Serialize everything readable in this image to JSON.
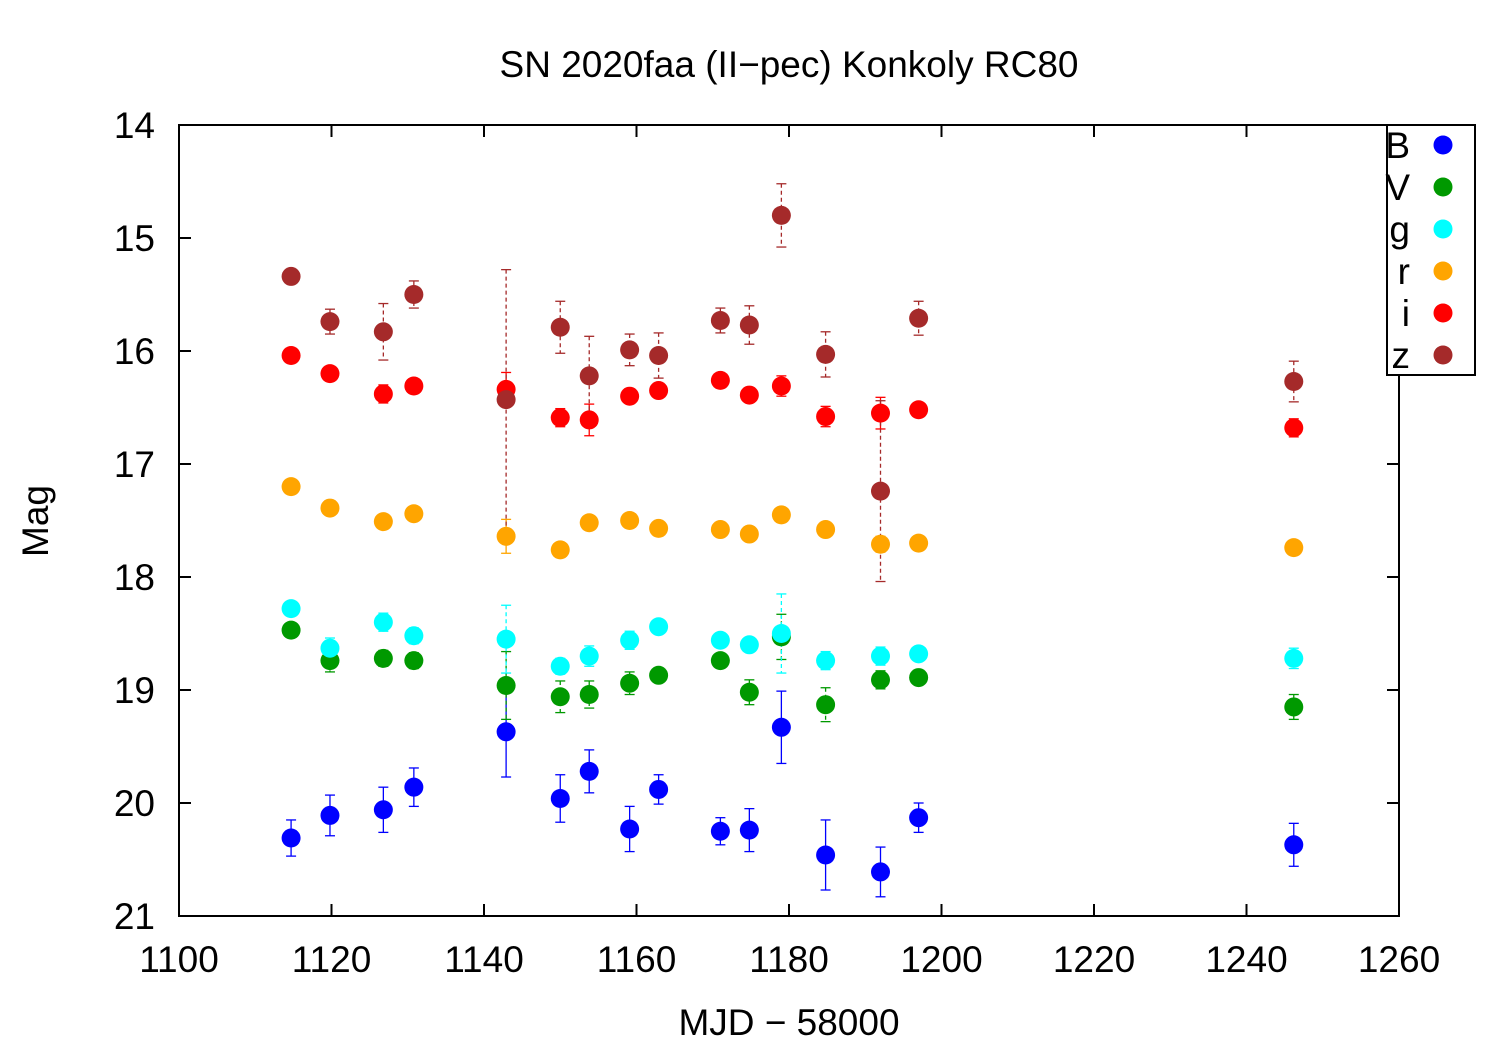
{
  "chart_data": {
    "type": "scatter",
    "title": "SN 2020faa (II−pec) Konkoly RC80",
    "xlabel": "MJD − 58000",
    "ylabel": "Mag",
    "xlim": [
      1100,
      1260
    ],
    "ylim": [
      21,
      14
    ],
    "y_inverted": true,
    "xticks": [
      1100,
      1120,
      1140,
      1160,
      1180,
      1200,
      1220,
      1240,
      1260
    ],
    "yticks": [
      14,
      15,
      16,
      17,
      18,
      19,
      20,
      21
    ],
    "grid": false,
    "legend_position": "top-right",
    "series": [
      {
        "name": "B",
        "color": "#0000ff",
        "points": [
          {
            "x": 1114.7,
            "y": 20.31,
            "err": 0.16
          },
          {
            "x": 1119.8,
            "y": 20.11,
            "err": 0.18
          },
          {
            "x": 1126.8,
            "y": 20.06,
            "err": 0.2
          },
          {
            "x": 1130.8,
            "y": 19.86,
            "err": 0.17
          },
          {
            "x": 1142.9,
            "y": 19.37,
            "err": 0.4
          },
          {
            "x": 1150.0,
            "y": 19.96,
            "err": 0.21
          },
          {
            "x": 1153.8,
            "y": 19.72,
            "err": 0.19
          },
          {
            "x": 1159.1,
            "y": 20.23,
            "err": 0.2
          },
          {
            "x": 1162.9,
            "y": 19.88,
            "err": 0.13
          },
          {
            "x": 1171.0,
            "y": 20.25,
            "err": 0.12
          },
          {
            "x": 1174.8,
            "y": 20.24,
            "err": 0.19
          },
          {
            "x": 1179.0,
            "y": 19.33,
            "err": 0.32
          },
          {
            "x": 1184.8,
            "y": 20.46,
            "err": 0.31
          },
          {
            "x": 1192.0,
            "y": 20.61,
            "err": 0.22
          },
          {
            "x": 1197.0,
            "y": 20.13,
            "err": 0.13
          },
          {
            "x": 1246.2,
            "y": 20.37,
            "err": 0.19
          }
        ]
      },
      {
        "name": "V",
        "color": "#009900",
        "points": [
          {
            "x": 1114.7,
            "y": 18.47,
            "err": 0.03
          },
          {
            "x": 1119.8,
            "y": 18.74,
            "err": 0.1
          },
          {
            "x": 1126.8,
            "y": 18.72,
            "err": 0.07
          },
          {
            "x": 1130.8,
            "y": 18.74,
            "err": 0.07
          },
          {
            "x": 1142.9,
            "y": 18.96,
            "err": 0.3
          },
          {
            "x": 1150.0,
            "y": 19.06,
            "err": 0.14
          },
          {
            "x": 1153.8,
            "y": 19.04,
            "err": 0.12
          },
          {
            "x": 1159.1,
            "y": 18.94,
            "err": 0.1
          },
          {
            "x": 1162.9,
            "y": 18.87,
            "err": 0.06
          },
          {
            "x": 1171.0,
            "y": 18.74,
            "err": 0.04
          },
          {
            "x": 1174.8,
            "y": 19.02,
            "err": 0.11
          },
          {
            "x": 1179.0,
            "y": 18.53,
            "err": 0.2
          },
          {
            "x": 1184.8,
            "y": 19.13,
            "err": 0.15
          },
          {
            "x": 1192.0,
            "y": 18.91,
            "err": 0.08
          },
          {
            "x": 1197.0,
            "y": 18.89,
            "err": 0.05
          },
          {
            "x": 1246.2,
            "y": 19.15,
            "err": 0.11
          }
        ]
      },
      {
        "name": "g",
        "color": "#00ffff",
        "points": [
          {
            "x": 1114.7,
            "y": 18.28,
            "err": 0.04
          },
          {
            "x": 1119.8,
            "y": 18.63,
            "err": 0.09
          },
          {
            "x": 1126.8,
            "y": 18.4,
            "err": 0.08
          },
          {
            "x": 1130.8,
            "y": 18.52,
            "err": 0.07
          },
          {
            "x": 1142.9,
            "y": 18.55,
            "err": 0.3
          },
          {
            "x": 1150.0,
            "y": 18.79,
            "err": 0.07
          },
          {
            "x": 1153.8,
            "y": 18.7,
            "err": 0.09
          },
          {
            "x": 1159.1,
            "y": 18.56,
            "err": 0.08
          },
          {
            "x": 1162.9,
            "y": 18.44,
            "err": 0.05
          },
          {
            "x": 1171.0,
            "y": 18.56,
            "err": 0.05
          },
          {
            "x": 1174.8,
            "y": 18.6,
            "err": 0.06
          },
          {
            "x": 1179.0,
            "y": 18.5,
            "err": 0.35
          },
          {
            "x": 1184.8,
            "y": 18.74,
            "err": 0.08
          },
          {
            "x": 1192.0,
            "y": 18.7,
            "err": 0.08
          },
          {
            "x": 1197.0,
            "y": 18.68,
            "err": 0.04
          },
          {
            "x": 1246.2,
            "y": 18.72,
            "err": 0.09
          }
        ]
      },
      {
        "name": "r",
        "color": "#ffa500",
        "points": [
          {
            "x": 1114.7,
            "y": 17.2,
            "err": 0.03
          },
          {
            "x": 1119.8,
            "y": 17.39,
            "err": 0.05
          },
          {
            "x": 1126.8,
            "y": 17.51,
            "err": 0.05
          },
          {
            "x": 1130.8,
            "y": 17.44,
            "err": 0.05
          },
          {
            "x": 1142.9,
            "y": 17.64,
            "err": 0.15
          },
          {
            "x": 1150.0,
            "y": 17.76,
            "err": 0.06
          },
          {
            "x": 1153.8,
            "y": 17.52,
            "err": 0.06
          },
          {
            "x": 1159.1,
            "y": 17.5,
            "err": 0.05
          },
          {
            "x": 1162.9,
            "y": 17.57,
            "err": 0.05
          },
          {
            "x": 1171.0,
            "y": 17.58,
            "err": 0.05
          },
          {
            "x": 1174.8,
            "y": 17.62,
            "err": 0.05
          },
          {
            "x": 1179.0,
            "y": 17.45,
            "err": 0.06
          },
          {
            "x": 1184.8,
            "y": 17.58,
            "err": 0.05
          },
          {
            "x": 1192.0,
            "y": 17.71,
            "err": 0.07
          },
          {
            "x": 1197.0,
            "y": 17.7,
            "err": 0.05
          },
          {
            "x": 1246.2,
            "y": 17.74,
            "err": 0.05
          }
        ]
      },
      {
        "name": "i",
        "color": "#ff0000",
        "points": [
          {
            "x": 1114.7,
            "y": 16.04,
            "err": 0.03
          },
          {
            "x": 1119.8,
            "y": 16.2,
            "err": 0.05
          },
          {
            "x": 1126.8,
            "y": 16.38,
            "err": 0.08
          },
          {
            "x": 1130.8,
            "y": 16.31,
            "err": 0.05
          },
          {
            "x": 1142.9,
            "y": 16.34,
            "err": 0.15
          },
          {
            "x": 1150.0,
            "y": 16.59,
            "err": 0.08
          },
          {
            "x": 1153.8,
            "y": 16.61,
            "err": 0.14
          },
          {
            "x": 1159.1,
            "y": 16.4,
            "err": 0.05
          },
          {
            "x": 1162.9,
            "y": 16.35,
            "err": 0.05
          },
          {
            "x": 1171.0,
            "y": 16.26,
            "err": 0.05
          },
          {
            "x": 1174.8,
            "y": 16.39,
            "err": 0.05
          },
          {
            "x": 1179.0,
            "y": 16.31,
            "err": 0.09
          },
          {
            "x": 1184.8,
            "y": 16.58,
            "err": 0.09
          },
          {
            "x": 1192.0,
            "y": 16.55,
            "err": 0.14
          },
          {
            "x": 1197.0,
            "y": 16.52,
            "err": 0.05
          },
          {
            "x": 1246.2,
            "y": 16.68,
            "err": 0.08
          }
        ]
      },
      {
        "name": "z",
        "color": "#a52a2a",
        "points": [
          {
            "x": 1114.7,
            "y": 15.34,
            "err": 0.05
          },
          {
            "x": 1119.8,
            "y": 15.74,
            "err": 0.11
          },
          {
            "x": 1126.8,
            "y": 15.83,
            "err": 0.25
          },
          {
            "x": 1130.8,
            "y": 15.5,
            "err": 0.12
          },
          {
            "x": 1142.9,
            "y": 16.43,
            "err": 1.15
          },
          {
            "x": 1150.0,
            "y": 15.79,
            "err": 0.23
          },
          {
            "x": 1153.8,
            "y": 16.22,
            "err": 0.35
          },
          {
            "x": 1159.1,
            "y": 15.99,
            "err": 0.14
          },
          {
            "x": 1162.9,
            "y": 16.04,
            "err": 0.2
          },
          {
            "x": 1171.0,
            "y": 15.73,
            "err": 0.11
          },
          {
            "x": 1174.8,
            "y": 15.77,
            "err": 0.17
          },
          {
            "x": 1179.0,
            "y": 14.8,
            "err": 0.28
          },
          {
            "x": 1184.8,
            "y": 16.03,
            "err": 0.2
          },
          {
            "x": 1192.0,
            "y": 17.24,
            "err": 0.8
          },
          {
            "x": 1197.0,
            "y": 15.71,
            "err": 0.15
          },
          {
            "x": 1246.2,
            "y": 16.27,
            "err": 0.18
          }
        ]
      }
    ]
  }
}
